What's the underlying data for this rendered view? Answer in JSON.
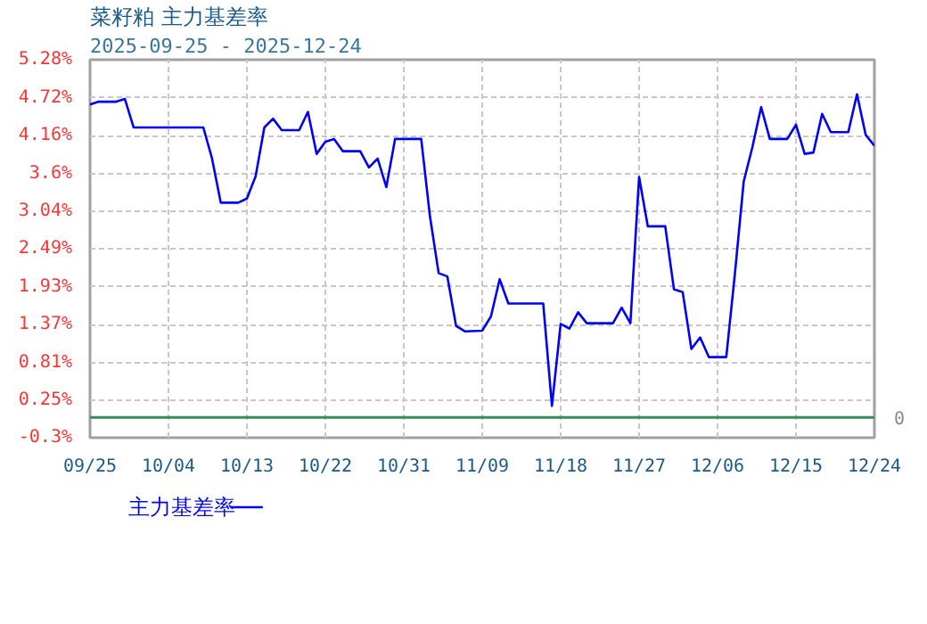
{
  "chart_data": {
    "type": "line",
    "title": "菜籽粕 主力基差率",
    "subtitle": "2025-09-25 - 2025-12-24",
    "x": [
      "2025-09-25",
      "2025-09-26",
      "2025-09-28",
      "2025-09-29",
      "2025-09-30",
      "2025-10-08",
      "2025-10-09",
      "2025-10-10",
      "2025-10-12",
      "2025-10-13",
      "2025-10-14",
      "2025-10-15",
      "2025-10-16",
      "2025-10-17",
      "2025-10-19",
      "2025-10-20",
      "2025-10-21",
      "2025-10-22",
      "2025-10-23",
      "2025-10-24",
      "2025-10-26",
      "2025-10-27",
      "2025-10-28",
      "2025-10-29",
      "2025-10-30",
      "2025-11-02",
      "2025-11-03",
      "2025-11-04",
      "2025-11-05",
      "2025-11-06",
      "2025-11-07",
      "2025-11-09",
      "2025-11-10",
      "2025-11-11",
      "2025-11-12",
      "2025-11-16",
      "2025-11-17",
      "2025-11-18",
      "2025-11-19",
      "2025-11-20",
      "2025-11-21",
      "2025-11-24",
      "2025-11-25",
      "2025-11-26",
      "2025-11-27",
      "2025-11-28",
      "2025-11-30",
      "2025-12-01",
      "2025-12-02",
      "2025-12-03",
      "2025-12-04",
      "2025-12-05",
      "2025-12-07",
      "2025-12-08",
      "2025-12-09",
      "2025-12-10",
      "2025-12-11",
      "2025-12-12",
      "2025-12-14",
      "2025-12-15",
      "2025-12-16",
      "2025-12-17",
      "2025-12-18",
      "2025-12-19",
      "2025-12-21",
      "2025-12-22",
      "2025-12-23",
      "2025-12-24"
    ],
    "series": [
      {
        "name": "主力基差率",
        "color": "#0000ff",
        "values": [
          4.62,
          4.66,
          4.66,
          4.7,
          4.28,
          4.28,
          3.82,
          3.17,
          3.17,
          3.23,
          3.56,
          4.28,
          4.41,
          4.24,
          4.24,
          4.51,
          3.89,
          4.07,
          4.11,
          3.93,
          3.93,
          3.69,
          3.82,
          3.4,
          4.11,
          4.11,
          2.97,
          2.13,
          2.08,
          1.35,
          1.27,
          1.28,
          1.49,
          2.04,
          1.68,
          1.68,
          0.17,
          1.38,
          1.31,
          1.55,
          1.39,
          1.39,
          1.62,
          1.39,
          3.55,
          2.82,
          2.82,
          1.89,
          1.85,
          1.01,
          1.18,
          0.89,
          0.89,
          2.13,
          3.48,
          3.99,
          4.58,
          4.11,
          4.11,
          4.32,
          3.89,
          3.91,
          4.48,
          4.21,
          4.21,
          4.77,
          4.17,
          4.01
        ]
      }
    ],
    "xlim": [
      "2025-09-25",
      "2025-12-24"
    ],
    "xticks": [
      {
        "value": "2025-09-25",
        "label": "09/25"
      },
      {
        "value": "2025-10-04",
        "label": "10/04"
      },
      {
        "value": "2025-10-13",
        "label": "10/13"
      },
      {
        "value": "2025-10-22",
        "label": "10/22"
      },
      {
        "value": "2025-10-31",
        "label": "10/31"
      },
      {
        "value": "2025-11-09",
        "label": "11/09"
      },
      {
        "value": "2025-11-18",
        "label": "11/18"
      },
      {
        "value": "2025-11-27",
        "label": "11/27"
      },
      {
        "value": "2025-12-06",
        "label": "12/06"
      },
      {
        "value": "2025-12-15",
        "label": "12/15"
      },
      {
        "value": "2025-12-24",
        "label": "12/24"
      }
    ],
    "ylim": [
      -0.3,
      5.28
    ],
    "yticks": [
      {
        "value": -0.3,
        "label": "-0.3%"
      },
      {
        "value": 0.25,
        "label": "0.25%"
      },
      {
        "value": 0.81,
        "label": "0.81%"
      },
      {
        "value": 1.37,
        "label": "1.37%"
      },
      {
        "value": 1.93,
        "label": "1.93%"
      },
      {
        "value": 2.49,
        "label": "2.49%"
      },
      {
        "value": 3.04,
        "label": "3.04%"
      },
      {
        "value": 3.6,
        "label": "3.6%"
      },
      {
        "value": 4.16,
        "label": "4.16%"
      },
      {
        "value": 4.72,
        "label": "4.72%"
      },
      {
        "value": 5.28,
        "label": "5.28%"
      }
    ],
    "ref_lines": [
      {
        "axis": "y",
        "value": 0,
        "label": "0",
        "color": "#3a8a5a"
      }
    ],
    "grid": true,
    "legend": "bottom left",
    "marker": "none",
    "line_style": "solid"
  }
}
